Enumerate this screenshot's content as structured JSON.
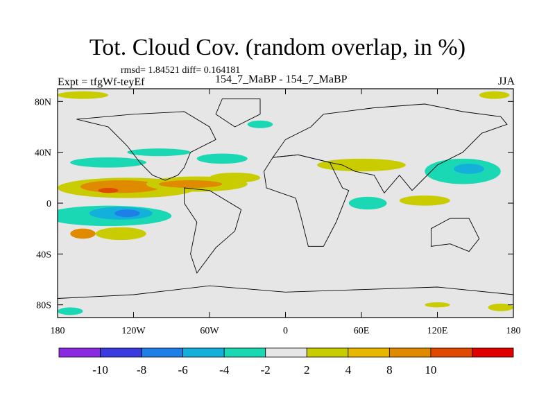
{
  "title": "Tot. Cloud Cov. (random overlap, in %)",
  "stats_line": "rmsd= 1.84521  diff= 0.164181",
  "experiment_label": "Expt = tfgWf-teyEf",
  "comparison_label": "154_7_MaBP - 154_7_MaBP",
  "season_label": "JJA",
  "x_ticks": [
    {
      "label": "180",
      "lon": -180
    },
    {
      "label": "120W",
      "lon": -120
    },
    {
      "label": "60W",
      "lon": -60
    },
    {
      "label": "0",
      "lon": 0
    },
    {
      "label": "60E",
      "lon": 60
    },
    {
      "label": "120E",
      "lon": 120
    },
    {
      "label": "180",
      "lon": 180
    }
  ],
  "y_ticks": [
    {
      "label": "80N",
      "lat": 80
    },
    {
      "label": "40N",
      "lat": 40
    },
    {
      "label": "0",
      "lat": 0
    },
    {
      "label": "40S",
      "lat": -40
    },
    {
      "label": "80S",
      "lat": -80
    }
  ],
  "colorbar": {
    "labels": [
      "-10",
      "-8",
      "-6",
      "-4",
      "-2",
      "2",
      "4",
      "8",
      "10"
    ],
    "colors": [
      "#8a2be2",
      "#3a3ae0",
      "#1f7fe8",
      "#14b0dc",
      "#1bd8b4",
      "#e6e6e6",
      "#c8cc00",
      "#e8b800",
      "#e08a00",
      "#e04a00",
      "#e00000"
    ]
  },
  "colors": {
    "background": "#e6e6e6",
    "coast": "#000000"
  },
  "blobs": [
    {
      "lon": -125,
      "lat": 12,
      "rx": 55,
      "ry": 8,
      "color": "#c8cc00"
    },
    {
      "lon": -130,
      "lat": 13,
      "rx": 32,
      "ry": 5,
      "color": "#e08a00"
    },
    {
      "lon": -140,
      "lat": 10,
      "rx": 8,
      "ry": 2,
      "color": "#e04a00"
    },
    {
      "lon": -70,
      "lat": 15,
      "rx": 40,
      "ry": 6,
      "color": "#c8cc00"
    },
    {
      "lon": -75,
      "lat": 15,
      "rx": 25,
      "ry": 3,
      "color": "#e08a00"
    },
    {
      "lon": -40,
      "lat": 20,
      "rx": 20,
      "ry": 4,
      "color": "#c8cc00"
    },
    {
      "lon": -140,
      "lat": -10,
      "rx": 50,
      "ry": 8,
      "color": "#1bd8b4"
    },
    {
      "lon": -130,
      "lat": -8,
      "rx": 25,
      "ry": 5,
      "color": "#14b0dc"
    },
    {
      "lon": -125,
      "lat": -8,
      "rx": 10,
      "ry": 3,
      "color": "#1f7fe8"
    },
    {
      "lon": -130,
      "lat": -24,
      "rx": 20,
      "ry": 5,
      "color": "#c8cc00"
    },
    {
      "lon": -160,
      "lat": -24,
      "rx": 10,
      "ry": 4,
      "color": "#e08a00"
    },
    {
      "lon": -140,
      "lat": 32,
      "rx": 30,
      "ry": 4,
      "color": "#1bd8b4"
    },
    {
      "lon": -100,
      "lat": 40,
      "rx": 25,
      "ry": 3,
      "color": "#1bd8b4"
    },
    {
      "lon": -50,
      "lat": 35,
      "rx": 20,
      "ry": 4,
      "color": "#1bd8b4"
    },
    {
      "lon": -20,
      "lat": 62,
      "rx": 10,
      "ry": 3,
      "color": "#1bd8b4"
    },
    {
      "lon": 60,
      "lat": 30,
      "rx": 35,
      "ry": 5,
      "color": "#c8cc00"
    },
    {
      "lon": 65,
      "lat": 0,
      "rx": 15,
      "ry": 5,
      "color": "#1bd8b4"
    },
    {
      "lon": 110,
      "lat": 2,
      "rx": 20,
      "ry": 4,
      "color": "#c8cc00"
    },
    {
      "lon": 140,
      "lat": 25,
      "rx": 30,
      "ry": 10,
      "color": "#1bd8b4"
    },
    {
      "lon": 145,
      "lat": 27,
      "rx": 12,
      "ry": 4,
      "color": "#14b0dc"
    },
    {
      "lon": -160,
      "lat": 85,
      "rx": 20,
      "ry": 3,
      "color": "#c8cc00"
    },
    {
      "lon": 165,
      "lat": 85,
      "rx": 12,
      "ry": 3,
      "color": "#c8cc00"
    },
    {
      "lon": 170,
      "lat": -82,
      "rx": 10,
      "ry": 3,
      "color": "#c8cc00"
    },
    {
      "lon": 120,
      "lat": -80,
      "rx": 10,
      "ry": 2,
      "color": "#c8cc00"
    },
    {
      "lon": -170,
      "lat": -85,
      "rx": 10,
      "ry": 3,
      "color": "#1bd8b4"
    }
  ],
  "continents": [
    [
      [
        -165,
        66
      ],
      [
        -120,
        70
      ],
      [
        -80,
        72
      ],
      [
        -60,
        60
      ],
      [
        -55,
        50
      ],
      [
        -75,
        40
      ],
      [
        -80,
        28
      ],
      [
        -85,
        22
      ],
      [
        -95,
        18
      ],
      [
        -105,
        22
      ],
      [
        -115,
        32
      ],
      [
        -125,
        45
      ],
      [
        -140,
        60
      ]
    ],
    [
      [
        -80,
        12
      ],
      [
        -60,
        10
      ],
      [
        -35,
        -5
      ],
      [
        -40,
        -22
      ],
      [
        -55,
        -35
      ],
      [
        -70,
        -55
      ],
      [
        -75,
        -40
      ],
      [
        -70,
        -15
      ],
      [
        -80,
        0
      ]
    ],
    [
      [
        -10,
        36
      ],
      [
        10,
        38
      ],
      [
        35,
        32
      ],
      [
        45,
        12
      ],
      [
        50,
        10
      ],
      [
        40,
        -15
      ],
      [
        30,
        -34
      ],
      [
        18,
        -34
      ],
      [
        12,
        -10
      ],
      [
        8,
        4
      ],
      [
        -15,
        12
      ],
      [
        -17,
        25
      ]
    ],
    [
      [
        -10,
        36
      ],
      [
        0,
        50
      ],
      [
        20,
        60
      ],
      [
        30,
        70
      ],
      [
        70,
        75
      ],
      [
        110,
        78
      ],
      [
        140,
        72
      ],
      [
        170,
        68
      ],
      [
        175,
        62
      ],
      [
        155,
        55
      ],
      [
        140,
        40
      ],
      [
        120,
        30
      ],
      [
        108,
        18
      ],
      [
        100,
        10
      ],
      [
        90,
        22
      ],
      [
        78,
        8
      ],
      [
        70,
        22
      ],
      [
        55,
        25
      ],
      [
        45,
        30
      ],
      [
        35,
        32
      ],
      [
        10,
        38
      ]
    ],
    [
      [
        115,
        -20
      ],
      [
        130,
        -12
      ],
      [
        145,
        -12
      ],
      [
        153,
        -28
      ],
      [
        145,
        -38
      ],
      [
        130,
        -32
      ],
      [
        115,
        -34
      ]
    ],
    [
      [
        -50,
        82
      ],
      [
        -20,
        82
      ],
      [
        -20,
        70
      ],
      [
        -40,
        60
      ],
      [
        -55,
        70
      ]
    ],
    [
      [
        -180,
        -75
      ],
      [
        -120,
        -72
      ],
      [
        -60,
        -65
      ],
      [
        0,
        -70
      ],
      [
        60,
        -68
      ],
      [
        120,
        -66
      ],
      [
        180,
        -72
      ],
      [
        180,
        -90
      ],
      [
        -180,
        -90
      ]
    ]
  ]
}
